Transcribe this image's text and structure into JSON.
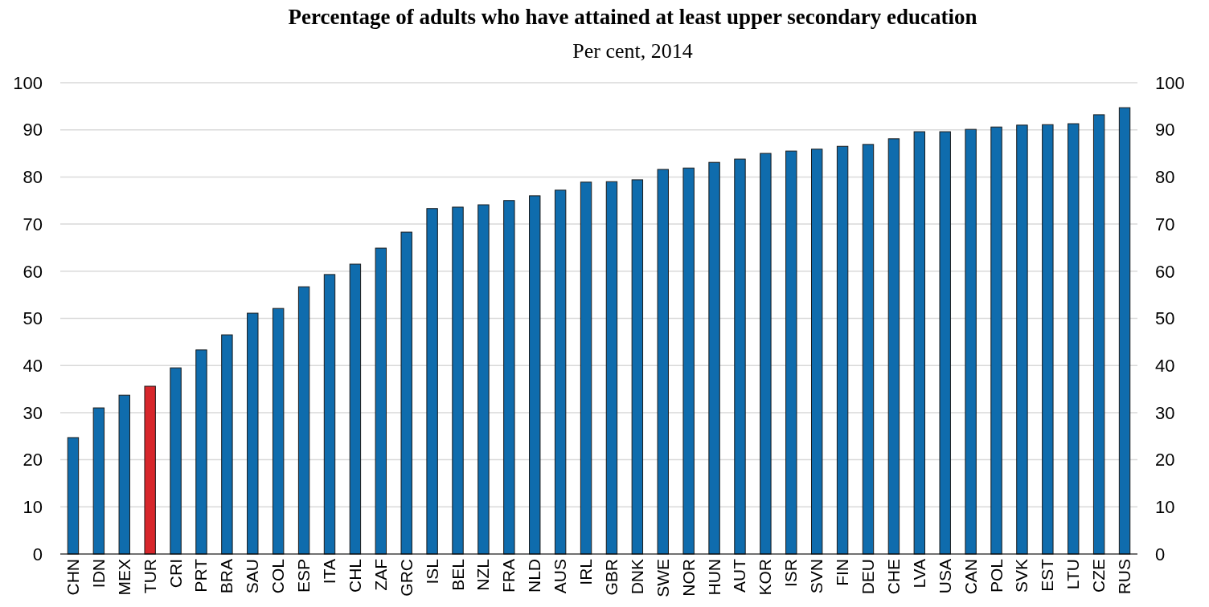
{
  "chart_data": {
    "type": "bar",
    "title": "Percentage of adults who have attained at least upper secondary education",
    "subtitle": "Per cent, 2014",
    "categories": [
      "CHN",
      "IDN",
      "MEX",
      "TUR",
      "CRI",
      "PRT",
      "BRA",
      "SAU",
      "COL",
      "ESP",
      "ITA",
      "CHL",
      "ZAF",
      "GRC",
      "ISL",
      "BEL",
      "NZL",
      "FRA",
      "NLD",
      "AUS",
      "IRL",
      "GBR",
      "DNK",
      "SWE",
      "NOR",
      "HUN",
      "AUT",
      "KOR",
      "ISR",
      "SVN",
      "FIN",
      "DEU",
      "CHE",
      "LVA",
      "USA",
      "CAN",
      "POL",
      "SVK",
      "EST",
      "LTU",
      "CZE",
      "RUS"
    ],
    "values": [
      24.7,
      31.0,
      33.7,
      35.6,
      39.5,
      43.3,
      46.5,
      51.1,
      52.1,
      56.7,
      59.3,
      61.5,
      64.9,
      68.3,
      73.3,
      73.6,
      74.1,
      75.0,
      76.0,
      77.2,
      78.9,
      79.0,
      79.4,
      81.6,
      81.9,
      83.1,
      83.8,
      85.0,
      85.5,
      85.9,
      86.5,
      86.9,
      88.1,
      89.6,
      89.6,
      90.1,
      90.6,
      91.0,
      91.1,
      91.3,
      93.2,
      94.7
    ],
    "colors": [
      "#0f6cad",
      "#0f6cad",
      "#0f6cad",
      "#d7262b",
      "#0f6cad",
      "#0f6cad",
      "#0f6cad",
      "#0f6cad",
      "#0f6cad",
      "#0f6cad",
      "#0f6cad",
      "#0f6cad",
      "#0f6cad",
      "#0f6cad",
      "#0f6cad",
      "#0f6cad",
      "#0f6cad",
      "#0f6cad",
      "#0f6cad",
      "#0f6cad",
      "#0f6cad",
      "#0f6cad",
      "#0f6cad",
      "#0f6cad",
      "#0f6cad",
      "#0f6cad",
      "#0f6cad",
      "#0f6cad",
      "#0f6cad",
      "#0f6cad",
      "#0f6cad",
      "#0f6cad",
      "#0f6cad",
      "#0f6cad",
      "#0f6cad",
      "#0f6cad",
      "#0f6cad",
      "#0f6cad",
      "#0f6cad",
      "#0f6cad",
      "#0f6cad",
      "#0f6cad"
    ],
    "ylim": [
      0,
      100
    ],
    "yticks": [
      0,
      10,
      20,
      30,
      40,
      50,
      60,
      70,
      80,
      90,
      100
    ],
    "y2lim": [
      0,
      100
    ],
    "y2ticks": [
      0,
      10,
      20,
      30,
      40,
      50,
      60,
      70,
      80,
      90,
      100
    ],
    "grid": "y"
  }
}
